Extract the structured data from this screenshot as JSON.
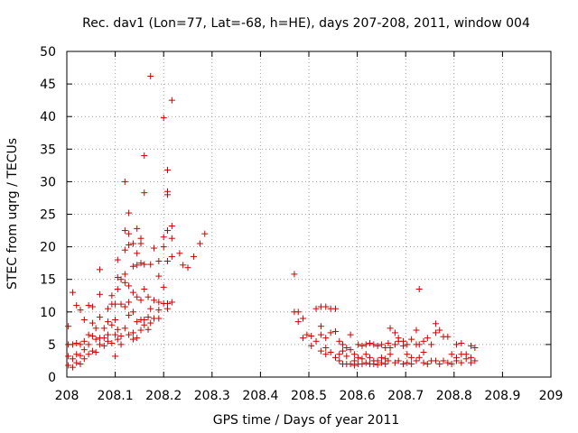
{
  "chart_data": {
    "type": "scatter",
    "title": "Rec. dav1 (Lon=77, Lat=-68, h=HE), days 207-208, 2011, window 004",
    "xlabel": "GPS time / Days of year 2011",
    "ylabel": "STEC from uqrg / TECUs",
    "xlim": [
      208,
      209
    ],
    "ylim": [
      0,
      50
    ],
    "x_ticks": [
      "208",
      "208.1",
      "208.2",
      "208.3",
      "208.4",
      "208.5",
      "208.6",
      "208.7",
      "208.8",
      "208.9",
      "209"
    ],
    "y_ticks": [
      "0",
      "5",
      "10",
      "15",
      "20",
      "25",
      "30",
      "35",
      "40",
      "45",
      "50"
    ],
    "grid": true,
    "marker": "+",
    "color": "#cc0000",
    "series": [
      {
        "points": [
          [
            208.003,
            7.8
          ],
          [
            208.003,
            5.0
          ],
          [
            208.003,
            3.2
          ],
          [
            208.003,
            1.8
          ],
          [
            208.012,
            13.0
          ],
          [
            208.012,
            5.0
          ],
          [
            208.012,
            2.8
          ],
          [
            208.012,
            1.5
          ],
          [
            208.02,
            11.0
          ],
          [
            208.02,
            5.2
          ],
          [
            208.02,
            3.5
          ],
          [
            208.02,
            2.2
          ],
          [
            208.028,
            10.3
          ],
          [
            208.028,
            5.0
          ],
          [
            208.028,
            3.3
          ],
          [
            208.028,
            2.0
          ],
          [
            208.036,
            8.8
          ],
          [
            208.036,
            5.5
          ],
          [
            208.036,
            4.2
          ],
          [
            208.036,
            2.8
          ],
          [
            208.045,
            11.0
          ],
          [
            208.045,
            6.5
          ],
          [
            208.045,
            5.0
          ],
          [
            208.045,
            3.5
          ],
          [
            208.053,
            10.8
          ],
          [
            208.053,
            8.3
          ],
          [
            208.053,
            6.3
          ],
          [
            208.053,
            4.0
          ],
          [
            208.06,
            7.5
          ],
          [
            208.06,
            5.8
          ],
          [
            208.06,
            3.8
          ],
          [
            208.068,
            16.5
          ],
          [
            208.068,
            12.7
          ],
          [
            208.068,
            9.2
          ],
          [
            208.068,
            6.0
          ],
          [
            208.068,
            5.0
          ],
          [
            208.077,
            7.5
          ],
          [
            208.077,
            6.0
          ],
          [
            208.077,
            4.8
          ],
          [
            208.085,
            10.5
          ],
          [
            208.085,
            8.5
          ],
          [
            208.085,
            6.5
          ],
          [
            208.085,
            5.5
          ],
          [
            208.093,
            12.5
          ],
          [
            208.093,
            11.2
          ],
          [
            208.093,
            8.0
          ],
          [
            208.093,
            5.2
          ],
          [
            208.1,
            11.2
          ],
          [
            208.1,
            8.8
          ],
          [
            208.1,
            6.5
          ],
          [
            208.1,
            3.2
          ],
          [
            208.105,
            18.0
          ],
          [
            208.105,
            15.3
          ],
          [
            208.105,
            13.5
          ],
          [
            208.105,
            7.3
          ],
          [
            208.105,
            5.8
          ],
          [
            208.112,
            15.0
          ],
          [
            208.112,
            11.2
          ],
          [
            208.112,
            6.3
          ],
          [
            208.112,
            5.0
          ],
          [
            208.12,
            30.0
          ],
          [
            208.12,
            22.5
          ],
          [
            208.12,
            19.5
          ],
          [
            208.12,
            15.8
          ],
          [
            208.12,
            14.5
          ],
          [
            208.12,
            10.8
          ],
          [
            208.12,
            7.5
          ],
          [
            208.128,
            25.2
          ],
          [
            208.128,
            22.0
          ],
          [
            208.128,
            20.3
          ],
          [
            208.128,
            14.0
          ],
          [
            208.128,
            11.5
          ],
          [
            208.128,
            9.5
          ],
          [
            208.128,
            6.5
          ],
          [
            208.137,
            20.5
          ],
          [
            208.137,
            17.0
          ],
          [
            208.137,
            13.0
          ],
          [
            208.137,
            10.0
          ],
          [
            208.137,
            6.8
          ],
          [
            208.137,
            5.8
          ],
          [
            208.145,
            22.8
          ],
          [
            208.145,
            19.0
          ],
          [
            208.145,
            17.2
          ],
          [
            208.145,
            12.3
          ],
          [
            208.145,
            8.5
          ],
          [
            208.145,
            6.0
          ],
          [
            208.153,
            21.3
          ],
          [
            208.153,
            20.5
          ],
          [
            208.153,
            17.5
          ],
          [
            208.153,
            11.8
          ],
          [
            208.153,
            8.8
          ],
          [
            208.153,
            7.2
          ],
          [
            208.16,
            34.0
          ],
          [
            208.16,
            28.3
          ],
          [
            208.16,
            17.3
          ],
          [
            208.16,
            13.5
          ],
          [
            208.16,
            8.8
          ],
          [
            208.16,
            8.0
          ],
          [
            208.168,
            12.3
          ],
          [
            208.168,
            9.2
          ],
          [
            208.168,
            7.3
          ],
          [
            208.173,
            46.2
          ],
          [
            208.173,
            17.3
          ],
          [
            208.173,
            10.5
          ],
          [
            208.173,
            8.3
          ],
          [
            208.18,
            19.8
          ],
          [
            208.18,
            11.8
          ],
          [
            208.18,
            9.0
          ],
          [
            208.19,
            17.8
          ],
          [
            208.19,
            15.5
          ],
          [
            208.19,
            11.5
          ],
          [
            208.19,
            10.3
          ],
          [
            208.19,
            9.0
          ],
          [
            208.2,
            39.8
          ],
          [
            208.2,
            21.5
          ],
          [
            208.2,
            20.0
          ],
          [
            208.2,
            13.8
          ],
          [
            208.2,
            11.3
          ],
          [
            208.208,
            31.8
          ],
          [
            208.208,
            28.5
          ],
          [
            208.208,
            28.0
          ],
          [
            208.208,
            22.5
          ],
          [
            208.208,
            17.8
          ],
          [
            208.208,
            11.3
          ],
          [
            208.208,
            10.5
          ],
          [
            208.217,
            42.5
          ],
          [
            208.217,
            23.2
          ],
          [
            208.217,
            21.3
          ],
          [
            208.217,
            18.5
          ],
          [
            208.217,
            11.5
          ],
          [
            208.233,
            19.0
          ],
          [
            208.24,
            17.2
          ],
          [
            208.25,
            16.8
          ],
          [
            208.262,
            18.5
          ],
          [
            208.275,
            20.5
          ],
          [
            208.285,
            22.0
          ],
          [
            208.47,
            15.8
          ],
          [
            208.47,
            10.0
          ],
          [
            208.478,
            10.0
          ],
          [
            208.478,
            8.5
          ],
          [
            208.488,
            9.0
          ],
          [
            208.488,
            6.0
          ],
          [
            208.496,
            6.5
          ],
          [
            208.505,
            6.3
          ],
          [
            208.505,
            4.8
          ],
          [
            208.515,
            10.5
          ],
          [
            208.515,
            5.5
          ],
          [
            208.525,
            10.8
          ],
          [
            208.525,
            7.8
          ],
          [
            208.525,
            6.5
          ],
          [
            208.525,
            4.0
          ],
          [
            208.535,
            10.8
          ],
          [
            208.535,
            6.0
          ],
          [
            208.535,
            4.5
          ],
          [
            208.535,
            3.5
          ],
          [
            208.545,
            10.5
          ],
          [
            208.545,
            6.8
          ],
          [
            208.545,
            3.8
          ],
          [
            208.555,
            10.5
          ],
          [
            208.555,
            7.0
          ],
          [
            208.555,
            3.0
          ],
          [
            208.563,
            5.5
          ],
          [
            208.563,
            3.5
          ],
          [
            208.563,
            2.5
          ],
          [
            208.57,
            5.0
          ],
          [
            208.57,
            4.0
          ],
          [
            208.57,
            2.0
          ],
          [
            208.578,
            4.5
          ],
          [
            208.578,
            3.2
          ],
          [
            208.578,
            2.0
          ],
          [
            208.586,
            6.5
          ],
          [
            208.586,
            4.2
          ],
          [
            208.586,
            2.0
          ],
          [
            208.594,
            3.5
          ],
          [
            208.594,
            2.5
          ],
          [
            208.594,
            1.8
          ],
          [
            208.602,
            5.0
          ],
          [
            208.602,
            3.0
          ],
          [
            208.602,
            2.0
          ],
          [
            208.61,
            4.8
          ],
          [
            208.61,
            2.8
          ],
          [
            208.61,
            2.0
          ],
          [
            208.618,
            5.0
          ],
          [
            208.618,
            3.5
          ],
          [
            208.618,
            2.2
          ],
          [
            208.626,
            5.2
          ],
          [
            208.626,
            3.0
          ],
          [
            208.626,
            2.0
          ],
          [
            208.634,
            5.0
          ],
          [
            208.634,
            2.5
          ],
          [
            208.634,
            2.0
          ],
          [
            208.642,
            4.8
          ],
          [
            208.642,
            2.5
          ],
          [
            208.642,
            1.9
          ],
          [
            208.65,
            5.0
          ],
          [
            208.65,
            3.0
          ],
          [
            208.65,
            2.2
          ],
          [
            208.658,
            4.5
          ],
          [
            208.658,
            2.8
          ],
          [
            208.658,
            2.0
          ],
          [
            208.664,
            5.2
          ],
          [
            208.664,
            2.5
          ],
          [
            208.668,
            7.5
          ],
          [
            208.668,
            4.5
          ],
          [
            208.668,
            3.5
          ],
          [
            208.678,
            6.8
          ],
          [
            208.678,
            5.0
          ],
          [
            208.678,
            2.2
          ],
          [
            208.685,
            6.0
          ],
          [
            208.685,
            5.5
          ],
          [
            208.685,
            2.5
          ],
          [
            208.695,
            5.5
          ],
          [
            208.695,
            4.8
          ],
          [
            208.695,
            2.0
          ],
          [
            208.703,
            5.0
          ],
          [
            208.703,
            3.5
          ],
          [
            208.703,
            2.2
          ],
          [
            208.712,
            5.8
          ],
          [
            208.712,
            3.0
          ],
          [
            208.712,
            2.0
          ],
          [
            208.722,
            7.2
          ],
          [
            208.722,
            5.0
          ],
          [
            208.722,
            2.5
          ],
          [
            208.728,
            13.5
          ],
          [
            208.728,
            5.0
          ],
          [
            208.728,
            3.0
          ],
          [
            208.737,
            5.5
          ],
          [
            208.737,
            3.8
          ],
          [
            208.737,
            2.2
          ],
          [
            208.745,
            6.0
          ],
          [
            208.745,
            2.0
          ],
          [
            208.753,
            5.0
          ],
          [
            208.753,
            2.5
          ],
          [
            208.762,
            8.2
          ],
          [
            208.762,
            6.8
          ],
          [
            208.762,
            2.5
          ],
          [
            208.77,
            7.2
          ],
          [
            208.77,
            2.0
          ],
          [
            208.778,
            6.2
          ],
          [
            208.778,
            2.5
          ],
          [
            208.787,
            6.2
          ],
          [
            208.787,
            2.2
          ],
          [
            208.795,
            3.5
          ],
          [
            208.795,
            2.0
          ],
          [
            208.805,
            5.0
          ],
          [
            208.805,
            3.0
          ],
          [
            208.805,
            2.5
          ],
          [
            208.815,
            5.2
          ],
          [
            208.815,
            3.5
          ],
          [
            208.815,
            2.2
          ],
          [
            208.825,
            3.5
          ],
          [
            208.825,
            2.8
          ],
          [
            208.835,
            4.8
          ],
          [
            208.835,
            3.0
          ],
          [
            208.835,
            2.2
          ],
          [
            208.843,
            4.5
          ],
          [
            208.843,
            2.5
          ]
        ]
      }
    ]
  }
}
